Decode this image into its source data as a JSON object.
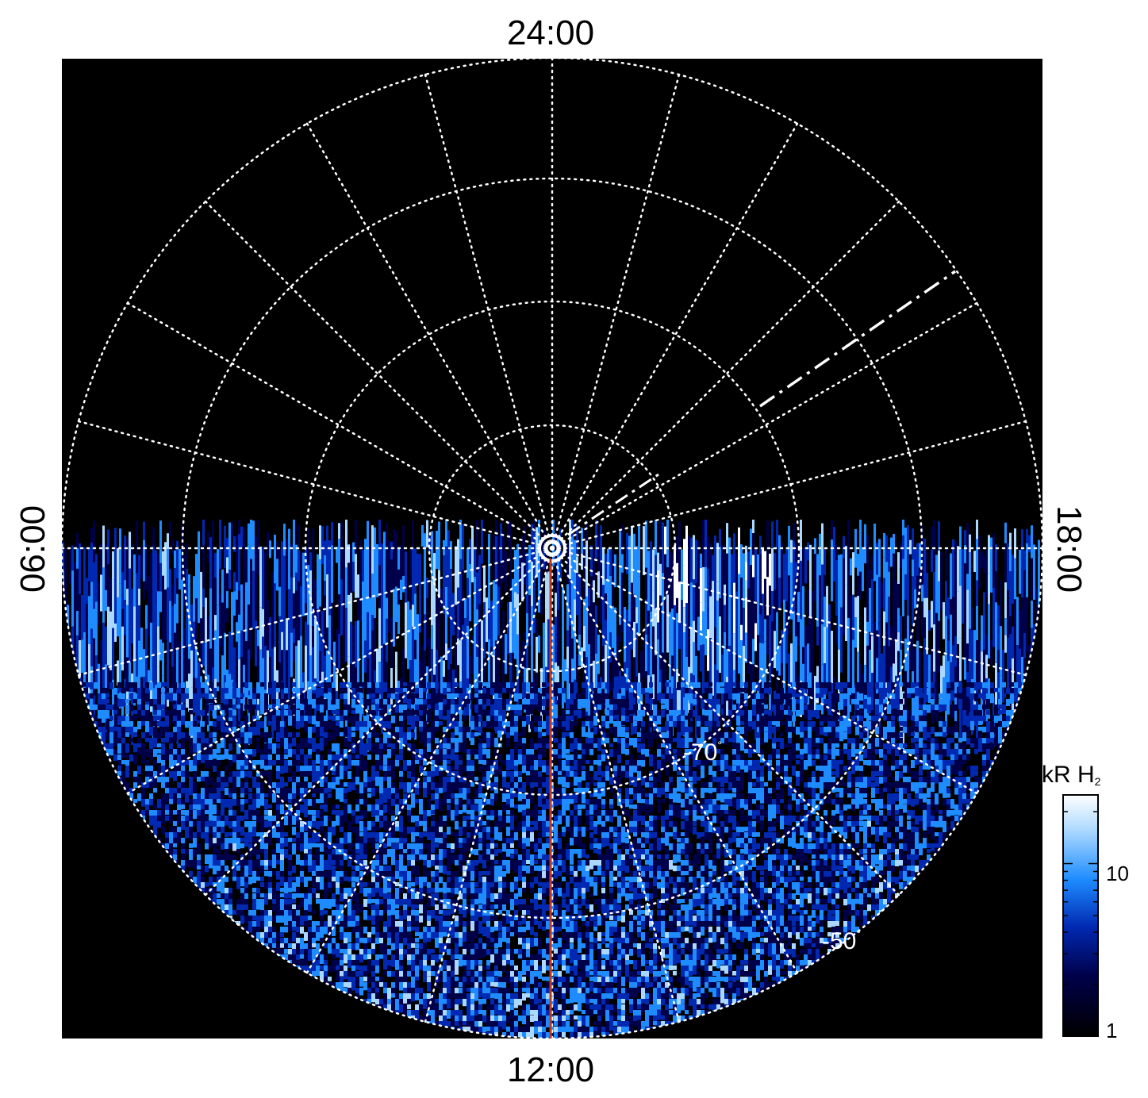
{
  "labels": {
    "top": "24:00",
    "bottom": "12:00",
    "left": "06:00",
    "right": "18:00"
  },
  "latitude_labels": {
    "inner": "-70",
    "outer": "-50",
    "degree": "°"
  },
  "colorbar": {
    "title_main": "kR H",
    "title_sub": "2",
    "ticks": [
      "10",
      "1"
    ],
    "scale": "log",
    "range": [
      1,
      25
    ]
  },
  "colors": {
    "background": "#000000",
    "grid": "#ffffff",
    "meridian_line": "#c0391e",
    "colormap": [
      "#000000",
      "#00004a",
      "#0028b0",
      "#1e8cff",
      "#aad8ff",
      "#ffffff"
    ]
  }
}
